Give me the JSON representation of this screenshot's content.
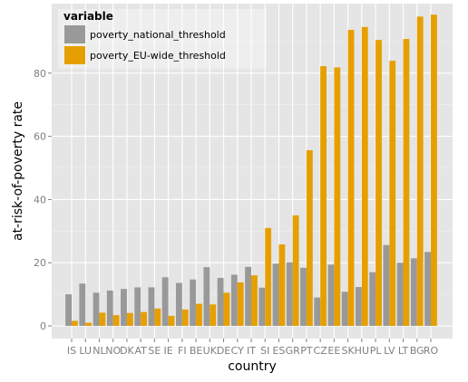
{
  "chart_data": {
    "type": "bar",
    "xlabel": "country",
    "ylabel": "at-risk-of-poverty rate",
    "ylim": [
      -4,
      102
    ],
    "yticks": [
      0,
      20,
      40,
      60,
      80
    ],
    "grid": true,
    "legend": {
      "title": "variable",
      "position": "top-left",
      "entries": [
        "poverty_national_threshold",
        "poverty_EU-wide_threshold"
      ]
    },
    "categories": [
      "IS",
      "LU",
      "NL",
      "NO",
      "DK",
      "AT",
      "SE",
      "IE",
      "FI",
      "BE",
      "UK",
      "DE",
      "CY",
      "IT",
      "SI",
      "ES",
      "GR",
      "PT",
      "CZ",
      "EE",
      "SK",
      "HU",
      "PL",
      "LV",
      "LT",
      "BG",
      "RO"
    ],
    "series": [
      {
        "name": "poverty_national_threshold",
        "color": "#999999",
        "values": [
          10,
          13.4,
          10.5,
          11.2,
          11.7,
          12.2,
          12.2,
          15.4,
          13.6,
          14.7,
          18.6,
          15.2,
          16.2,
          18.7,
          12.1,
          19.7,
          20.1,
          18.4,
          9.0,
          19.4,
          10.8,
          12.3,
          17.0,
          25.6,
          20.0,
          21.4,
          23.4
        ]
      },
      {
        "name": "poverty_EU-wide_threshold",
        "color": "#E69F00",
        "values": [
          1.6,
          1.0,
          4.2,
          3.4,
          4.1,
          4.4,
          5.5,
          3.2,
          5.2,
          7.0,
          6.8,
          10.5,
          13.8,
          16.0,
          31.0,
          25.8,
          35.0,
          55.6,
          82.2,
          81.8,
          93.7,
          94.6,
          90.5,
          83.9,
          90.8,
          97.9,
          98.5
        ]
      }
    ]
  }
}
